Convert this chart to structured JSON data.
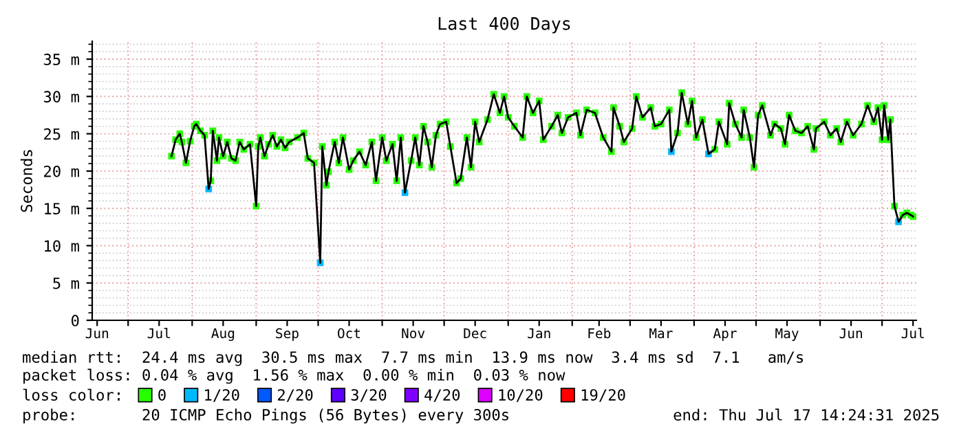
{
  "chart_data": {
    "type": "line",
    "title": "Last 400 Days",
    "ylabel": "Seconds",
    "legend_title": "loss color:",
    "legend": "bottom",
    "grid": true,
    "xlim": [
      "2024-06-13T14:24",
      "2025-07-17T14:24"
    ],
    "xticks": [
      {
        "value": "2024-06-16",
        "label": "Jun"
      },
      {
        "value": "2024-07-01",
        "label": null
      },
      {
        "value": "2024-07-16",
        "label": "Jul"
      },
      {
        "value": "2024-08-01",
        "label": null
      },
      {
        "value": "2024-08-16",
        "label": "Aug"
      },
      {
        "value": "2024-09-01",
        "label": null
      },
      {
        "value": "2024-09-16",
        "label": "Sep"
      },
      {
        "value": "2024-10-01",
        "label": null
      },
      {
        "value": "2024-10-16",
        "label": "Oct"
      },
      {
        "value": "2024-11-01",
        "label": null
      },
      {
        "value": "2024-11-16",
        "label": "Nov"
      },
      {
        "value": "2024-12-01",
        "label": null
      },
      {
        "value": "2024-12-16",
        "label": "Dec"
      },
      {
        "value": "2025-01-01",
        "label": null
      },
      {
        "value": "2025-01-16",
        "label": "Jan"
      },
      {
        "value": "2025-02-01",
        "label": null
      },
      {
        "value": "2025-02-14",
        "label": "Feb"
      },
      {
        "value": "2025-03-01",
        "label": null
      },
      {
        "value": "2025-03-16",
        "label": "Mar"
      },
      {
        "value": "2025-04-01",
        "label": null
      },
      {
        "value": "2025-04-16",
        "label": "Apr"
      },
      {
        "value": "2025-05-01",
        "label": null
      },
      {
        "value": "2025-05-16",
        "label": "May"
      },
      {
        "value": "2025-06-01",
        "label": null
      },
      {
        "value": "2025-06-16",
        "label": "Jun"
      },
      {
        "value": "2025-07-01",
        "label": null
      },
      {
        "value": "2025-07-16",
        "label": "Jul"
      }
    ],
    "ylim": [
      0,
      37.4
    ],
    "yticks": [
      0,
      {
        "value": 5,
        "label": "5 m"
      },
      {
        "value": 10,
        "label": "10 m"
      },
      {
        "value": 15,
        "label": "15 m"
      },
      {
        "value": 20,
        "label": "20 m"
      },
      {
        "value": 25,
        "label": "25 m"
      },
      {
        "value": 30,
        "label": "30 m"
      },
      {
        "value": 35,
        "label": "35 m"
      },
      {
        "value": 1,
        "label": null
      },
      {
        "value": 2,
        "label": null
      },
      {
        "value": 3,
        "label": null
      },
      {
        "value": 4,
        "label": null
      },
      {
        "value": 6,
        "label": null
      },
      {
        "value": 7,
        "label": null
      },
      {
        "value": 8,
        "label": null
      },
      {
        "value": 9,
        "label": null
      },
      {
        "value": 11,
        "label": null
      },
      {
        "value": 12,
        "label": null
      },
      {
        "value": 13,
        "label": null
      },
      {
        "value": 14,
        "label": null
      },
      {
        "value": 16,
        "label": null
      },
      {
        "value": 17,
        "label": null
      },
      {
        "value": 18,
        "label": null
      },
      {
        "value": 19,
        "label": null
      },
      {
        "value": 21,
        "label": null
      },
      {
        "value": 22,
        "label": null
      },
      {
        "value": 23,
        "label": null
      },
      {
        "value": 24,
        "label": null
      },
      {
        "value": 26,
        "label": null
      },
      {
        "value": 27,
        "label": null
      },
      {
        "value": 28,
        "label": null
      },
      {
        "value": 29,
        "label": null
      },
      {
        "value": 31,
        "label": null
      },
      {
        "value": 32,
        "label": null
      },
      {
        "value": 33,
        "label": null
      },
      {
        "value": 34,
        "label": null
      },
      {
        "value": 36,
        "label": null
      },
      {
        "value": 37,
        "label": null
      }
    ],
    "annotations": [
      "median rtt:  24.4 ms avg  30.5 ms max  7.7 ms min  13.9 ms now  3.4 ms sd  7.1   am/s",
      "packet loss: 0.04 % avg  1.56 % max  0.00 % min  0.03 % now",
      "probe:       20 ICMP Echo Pings (56 Bytes) every 300s",
      "end: Thu Jul 17 14:24:31 2025"
    ],
    "series": [
      {
        "color": "#000000",
        "line_style": "solid",
        "x": [
          "2024-07-22",
          "2024-07-24",
          "2024-07-26",
          "2024-07-27",
          "2024-07-29",
          "2024-07-31",
          "2024-08-02",
          "2024-08-03",
          "2024-08-05",
          "2024-08-07",
          "2024-08-09",
          "2024-08-10",
          "2024-08-11",
          "2024-08-13",
          "2024-08-14",
          "2024-08-16",
          "2024-08-18",
          "2024-08-20",
          "2024-08-22",
          "2024-08-24",
          "2024-08-26",
          "2024-08-29",
          "2024-09-01",
          "2024-09-02",
          "2024-09-03",
          "2024-09-05",
          "2024-09-07",
          "2024-09-09",
          "2024-09-11",
          "2024-09-13",
          "2024-09-15",
          "2024-09-17",
          "2024-09-21",
          "2024-09-24",
          "2024-09-26",
          "2024-09-29",
          "2024-10-02",
          "2024-10-03",
          "2024-10-05",
          "2024-10-06",
          "2024-10-09",
          "2024-10-11",
          "2024-10-13",
          "2024-10-16",
          "2024-10-18",
          "2024-10-21",
          "2024-10-24",
          "2024-10-27",
          "2024-10-29",
          "2024-11-01",
          "2024-11-03",
          "2024-11-06",
          "2024-11-08",
          "2024-11-10",
          "2024-11-12",
          "2024-11-15",
          "2024-11-17",
          "2024-11-19",
          "2024-11-21",
          "2024-11-23",
          "2024-11-25",
          "2024-11-27",
          "2024-11-29",
          "2024-12-02",
          "2024-12-04",
          "2024-12-07",
          "2024-12-09",
          "2024-12-12",
          "2024-12-14",
          "2024-12-16",
          "2024-12-18",
          "2024-12-22",
          "2024-12-25",
          "2024-12-28",
          "2024-12-30",
          "2025-01-01",
          "2025-01-04",
          "2025-01-08",
          "2025-01-10",
          "2025-01-13",
          "2025-01-16",
          "2025-01-18",
          "2025-01-22",
          "2025-01-25",
          "2025-01-27",
          "2025-01-30",
          "2025-02-03",
          "2025-02-05",
          "2025-02-08",
          "2025-02-12",
          "2025-02-16",
          "2025-02-20",
          "2025-02-21",
          "2025-02-24",
          "2025-02-26",
          "2025-03-02",
          "2025-03-04",
          "2025-03-07",
          "2025-03-11",
          "2025-03-13",
          "2025-03-16",
          "2025-03-20",
          "2025-03-21",
          "2025-03-24",
          "2025-03-26",
          "2025-03-29",
          "2025-03-31",
          "2025-04-02",
          "2025-04-05",
          "2025-04-08",
          "2025-04-11",
          "2025-04-13",
          "2025-04-17",
          "2025-04-18",
          "2025-04-21",
          "2025-04-24",
          "2025-04-25",
          "2025-04-28",
          "2025-04-30",
          "2025-05-02",
          "2025-05-04",
          "2025-05-08",
          "2025-05-10",
          "2025-05-13",
          "2025-05-15",
          "2025-05-17",
          "2025-05-20",
          "2025-05-23",
          "2025-05-26",
          "2025-05-29",
          "2025-05-30",
          "2025-06-03",
          "2025-06-06",
          "2025-06-09",
          "2025-06-11",
          "2025-06-14",
          "2025-06-17",
          "2025-06-21",
          "2025-06-24",
          "2025-06-27",
          "2025-06-29",
          "2025-07-01",
          "2025-07-02",
          "2025-07-04",
          "2025-07-05",
          "2025-07-07",
          "2025-07-09",
          "2025-07-11",
          "2025-07-13",
          "2025-07-15",
          "2025-07-16"
        ],
        "values": [
          22.0,
          24.2,
          25.0,
          23.9,
          21.1,
          24.0,
          26.0,
          26.3,
          25.4,
          24.8,
          17.6,
          18.7,
          25.4,
          21.4,
          24.5,
          22.0,
          23.9,
          21.7,
          21.4,
          23.9,
          22.9,
          23.6,
          15.3,
          23.3,
          24.5,
          22.0,
          23.6,
          24.8,
          23.3,
          24.2,
          23.1,
          23.9,
          24.5,
          25.1,
          21.7,
          21.1,
          7.7,
          23.3,
          18.1,
          19.9,
          23.9,
          21.1,
          24.5,
          20.2,
          21.4,
          22.6,
          20.8,
          23.9,
          18.7,
          24.5,
          21.4,
          23.6,
          18.7,
          24.5,
          17.1,
          21.4,
          24.5,
          20.8,
          26.0,
          23.9,
          20.5,
          24.8,
          26.3,
          26.6,
          23.3,
          18.4,
          19.0,
          24.5,
          20.5,
          26.6,
          23.9,
          26.9,
          30.3,
          27.8,
          30.0,
          27.2,
          26.0,
          24.5,
          30.0,
          27.8,
          29.4,
          24.2,
          26.0,
          27.5,
          25.1,
          27.2,
          27.8,
          24.8,
          28.2,
          27.8,
          24.5,
          22.6,
          28.5,
          26.0,
          23.9,
          25.7,
          30.0,
          27.2,
          28.5,
          26.0,
          26.3,
          28.2,
          22.6,
          25.1,
          30.5,
          26.3,
          29.4,
          24.5,
          26.9,
          22.3,
          22.9,
          26.6,
          23.6,
          29.1,
          26.3,
          24.5,
          28.2,
          24.5,
          20.5,
          27.5,
          28.8,
          24.8,
          26.3,
          25.7,
          23.6,
          27.5,
          25.4,
          25.1,
          26.0,
          22.9,
          25.7,
          26.6,
          24.8,
          25.7,
          23.9,
          26.6,
          24.8,
          26.3,
          28.8,
          26.6,
          28.5,
          24.2,
          28.8,
          24.2,
          26.9,
          15.3,
          13.2,
          14.1,
          14.4,
          14.1,
          13.9
        ]
      },
      {
        "type": "scatter",
        "name": "0",
        "color": "#26ff00",
        "marker": "square",
        "x": [
          "2024-07-22",
          "2024-07-24",
          "2024-07-26",
          "2024-07-27",
          "2024-07-29",
          "2024-07-31",
          "2024-08-02",
          "2024-08-03",
          "2024-08-05",
          "2024-08-07",
          "2024-08-10",
          "2024-08-11",
          "2024-08-13",
          "2024-08-14",
          "2024-08-16",
          "2024-08-18",
          "2024-08-20",
          "2024-08-22",
          "2024-08-24",
          "2024-08-26",
          "2024-08-29",
          "2024-09-01",
          "2024-09-02",
          "2024-09-03",
          "2024-09-05",
          "2024-09-07",
          "2024-09-09",
          "2024-09-11",
          "2024-09-13",
          "2024-09-15",
          "2024-09-17",
          "2024-09-21",
          "2024-09-24",
          "2024-09-26",
          "2024-09-29",
          "2024-10-03",
          "2024-10-05",
          "2024-10-06",
          "2024-10-09",
          "2024-10-11",
          "2024-10-13",
          "2024-10-16",
          "2024-10-18",
          "2024-10-21",
          "2024-10-24",
          "2024-10-27",
          "2024-10-29",
          "2024-11-01",
          "2024-11-03",
          "2024-11-06",
          "2024-11-08",
          "2024-11-10",
          "2024-11-15",
          "2024-11-17",
          "2024-11-19",
          "2024-11-21",
          "2024-11-23",
          "2024-11-25",
          "2024-11-27",
          "2024-11-29",
          "2024-12-02",
          "2024-12-04",
          "2024-12-07",
          "2024-12-09",
          "2024-12-12",
          "2024-12-14",
          "2024-12-16",
          "2024-12-18",
          "2024-12-22",
          "2024-12-25",
          "2024-12-28",
          "2024-12-30",
          "2025-01-01",
          "2025-01-04",
          "2025-01-08",
          "2025-01-10",
          "2025-01-13",
          "2025-01-16",
          "2025-01-18",
          "2025-01-22",
          "2025-01-25",
          "2025-01-27",
          "2025-01-30",
          "2025-02-03",
          "2025-02-05",
          "2025-02-08",
          "2025-02-12",
          "2025-02-16",
          "2025-02-20",
          "2025-02-21",
          "2025-02-24",
          "2025-02-26",
          "2025-03-02",
          "2025-03-04",
          "2025-03-07",
          "2025-03-11",
          "2025-03-13",
          "2025-03-16",
          "2025-03-20",
          "2025-03-24",
          "2025-03-26",
          "2025-03-29",
          "2025-03-31",
          "2025-04-02",
          "2025-04-05",
          "2025-04-11",
          "2025-04-13",
          "2025-04-17",
          "2025-04-18",
          "2025-04-21",
          "2025-04-24",
          "2025-04-25",
          "2025-04-28",
          "2025-04-30",
          "2025-05-02",
          "2025-05-04",
          "2025-05-08",
          "2025-05-10",
          "2025-05-13",
          "2025-05-15",
          "2025-05-17",
          "2025-05-20",
          "2025-05-23",
          "2025-05-26",
          "2025-05-29",
          "2025-05-30",
          "2025-06-03",
          "2025-06-06",
          "2025-06-09",
          "2025-06-11",
          "2025-06-14",
          "2025-06-17",
          "2025-06-21",
          "2025-06-24",
          "2025-06-27",
          "2025-06-29",
          "2025-07-01",
          "2025-07-02",
          "2025-07-04",
          "2025-07-05",
          "2025-07-07",
          "2025-07-11",
          "2025-07-13",
          "2025-07-15",
          "2025-07-16"
        ],
        "values": [
          22.0,
          24.2,
          25.0,
          23.9,
          21.1,
          24.0,
          26.0,
          26.3,
          25.4,
          24.8,
          18.7,
          25.4,
          21.4,
          24.5,
          22.0,
          23.9,
          21.7,
          21.4,
          23.9,
          22.9,
          23.6,
          15.3,
          23.3,
          24.5,
          22.0,
          23.6,
          24.8,
          23.3,
          24.2,
          23.1,
          23.9,
          24.5,
          25.1,
          21.7,
          21.1,
          23.3,
          18.1,
          19.9,
          23.9,
          21.1,
          24.5,
          20.2,
          21.4,
          22.6,
          20.8,
          23.9,
          18.7,
          24.5,
          21.4,
          23.6,
          18.7,
          24.5,
          21.4,
          24.5,
          20.8,
          26.0,
          23.9,
          20.5,
          24.8,
          26.3,
          26.6,
          23.3,
          18.4,
          19.0,
          24.5,
          20.5,
          26.6,
          23.9,
          26.9,
          30.3,
          27.8,
          30.0,
          27.2,
          26.0,
          24.5,
          30.0,
          27.8,
          29.4,
          24.2,
          26.0,
          27.5,
          25.1,
          27.2,
          27.8,
          24.8,
          28.2,
          27.8,
          24.5,
          22.6,
          28.5,
          26.0,
          23.9,
          25.7,
          30.0,
          27.2,
          28.5,
          26.0,
          26.3,
          28.2,
          25.1,
          30.5,
          26.3,
          29.4,
          24.5,
          26.9,
          22.9,
          26.6,
          23.6,
          29.1,
          26.3,
          24.5,
          28.2,
          24.5,
          20.5,
          27.5,
          28.8,
          24.8,
          26.3,
          25.7,
          23.6,
          27.5,
          25.4,
          25.1,
          26.0,
          22.9,
          25.7,
          26.6,
          24.8,
          25.7,
          23.9,
          26.6,
          24.8,
          26.3,
          28.8,
          26.6,
          28.5,
          24.2,
          28.8,
          24.2,
          26.9,
          15.3,
          14.1,
          14.4,
          14.1,
          13.9
        ]
      },
      {
        "type": "scatter",
        "name": "1/20",
        "color": "#00b8ff",
        "marker": "square",
        "x": [
          "2024-08-09",
          "2024-10-02",
          "2024-11-12",
          "2025-03-21",
          "2025-04-08",
          "2025-07-09"
        ],
        "values": [
          17.6,
          7.7,
          17.1,
          22.6,
          22.3,
          13.2
        ]
      },
      {
        "type": "scatter",
        "name": "2/20",
        "color": "#0059ff",
        "marker": "square"
      },
      {
        "type": "scatter",
        "name": "3/20",
        "color": "#5e00ff",
        "marker": "square"
      },
      {
        "type": "scatter",
        "name": "4/20",
        "color": "#7e00ff",
        "marker": "square"
      },
      {
        "type": "scatter",
        "name": "10/20",
        "color": "#dd00ff",
        "marker": "square"
      },
      {
        "type": "scatter",
        "name": "19/20",
        "color": "#ff0000",
        "marker": "square"
      }
    ]
  }
}
